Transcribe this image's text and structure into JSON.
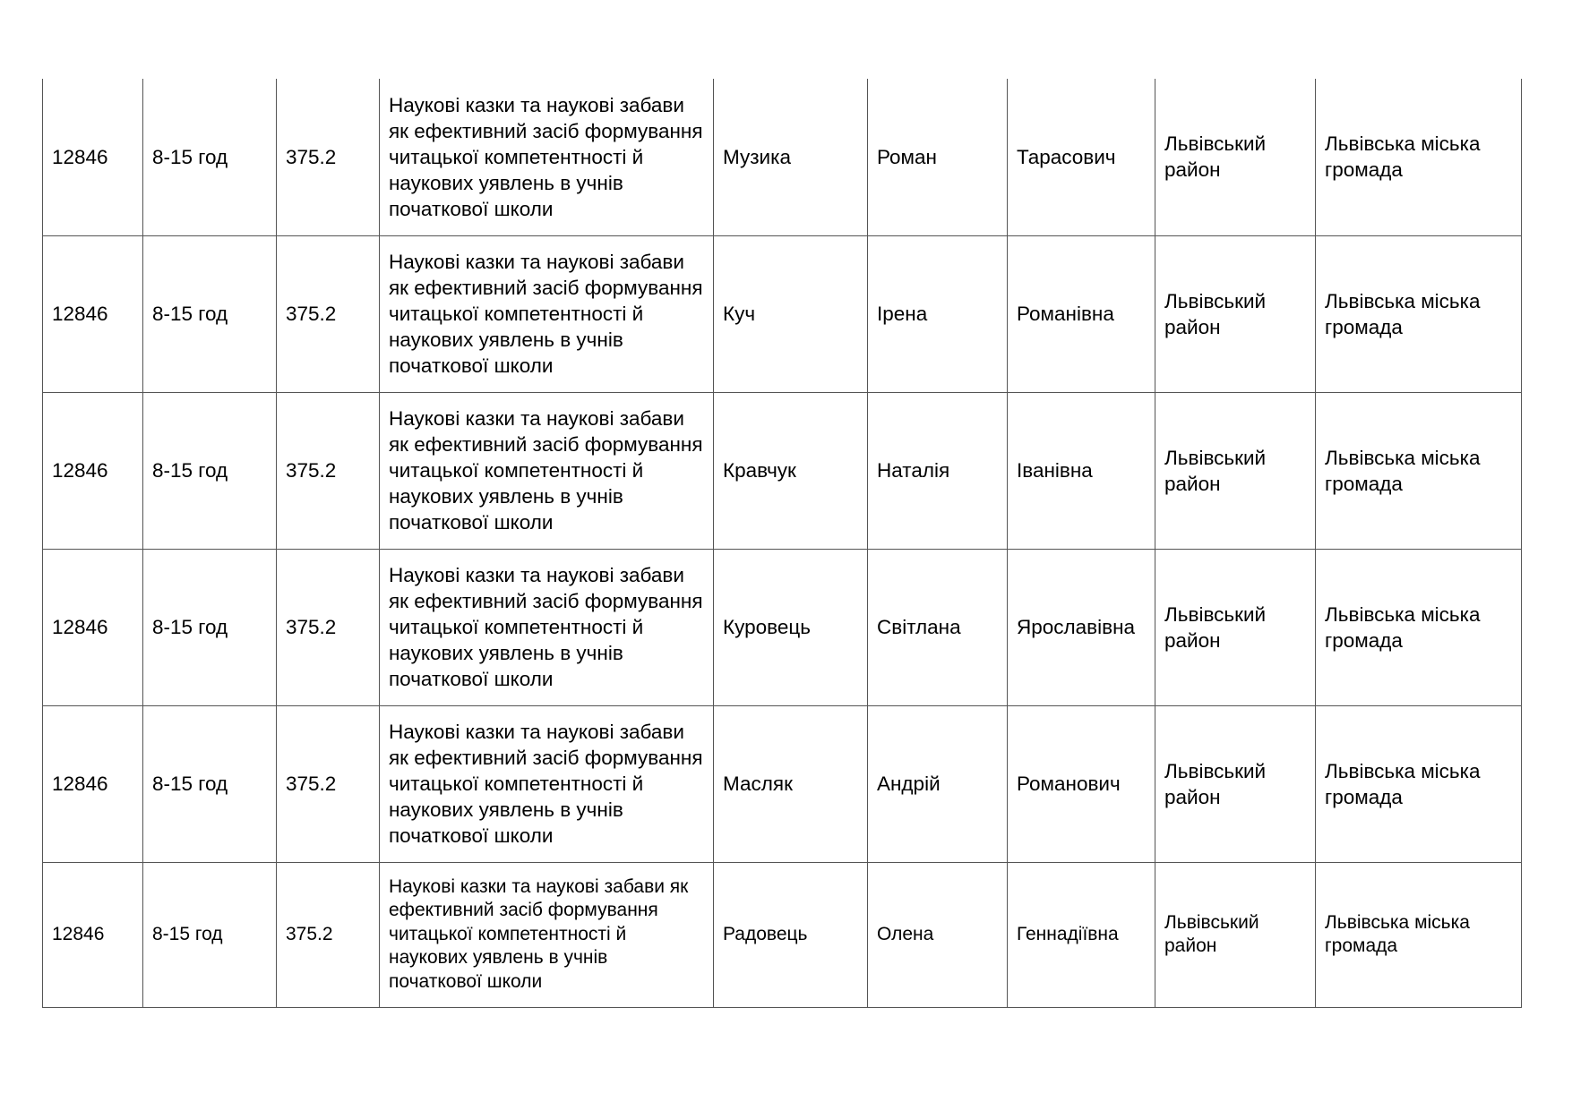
{
  "rows": [
    {
      "id": "12846",
      "hours": "8-15 год",
      "code": "375.2",
      "topic": "Наукові казки та наукові забави як ефективний засіб формування читацької компетентності й наукових уявлень в учнів початкової школи",
      "surname": "Музика",
      "name": "Роман",
      "patronymic": "Тарасович",
      "district": "Львівський район",
      "community": "Львівська міська громада"
    },
    {
      "id": "12846",
      "hours": "8-15 год",
      "code": "375.2",
      "topic": "Наукові казки та наукові забави як ефективний засіб формування читацької компетентності й наукових уявлень в учнів початкової школи",
      "surname": "Куч",
      "name": "Ірена",
      "patronymic": "Романівна",
      "district": "Львівський район",
      "community": "Львівська міська громада"
    },
    {
      "id": "12846",
      "hours": "8-15 год",
      "code": "375.2",
      "topic": "Наукові казки та наукові забави як ефективний засіб формування читацької компетентності й наукових уявлень в учнів початкової школи",
      "surname": "Кравчук",
      "name": "Наталія",
      "patronymic": "Іванівна",
      "district": "Львівський район",
      "community": "Львівська міська громада"
    },
    {
      "id": "12846",
      "hours": "8-15 год",
      "code": "375.2",
      "topic": "Наукові казки та наукові забави як ефективний засіб формування читацької компетентності й наукових уявлень в учнів початкової школи",
      "surname": "Куровець",
      "name": "Світлана",
      "patronymic": "Ярославівна",
      "district": "Львівський район",
      "community": "Львівська міська громада"
    },
    {
      "id": "12846",
      "hours": "8-15 год",
      "code": "375.2",
      "topic": "Наукові казки та наукові забави як ефективний засіб формування читацької компетентності й наукових уявлень в учнів початкової школи",
      "surname": "Масляк",
      "name": "Андрій",
      "patronymic": "Романович",
      "district": "Львівський район",
      "community": "Львівська міська громада"
    },
    {
      "id": "12846",
      "hours": "8-15 год",
      "code": "375.2",
      "topic": "Наукові казки та наукові забави як ефективний засіб формування читацької компетентності й наукових уявлень в учнів початкової школи",
      "surname": "Радовець",
      "name": "Олена",
      "patronymic": "Геннадіївна",
      "district": "Львівський район",
      "community": "Львівська міська громада"
    }
  ]
}
